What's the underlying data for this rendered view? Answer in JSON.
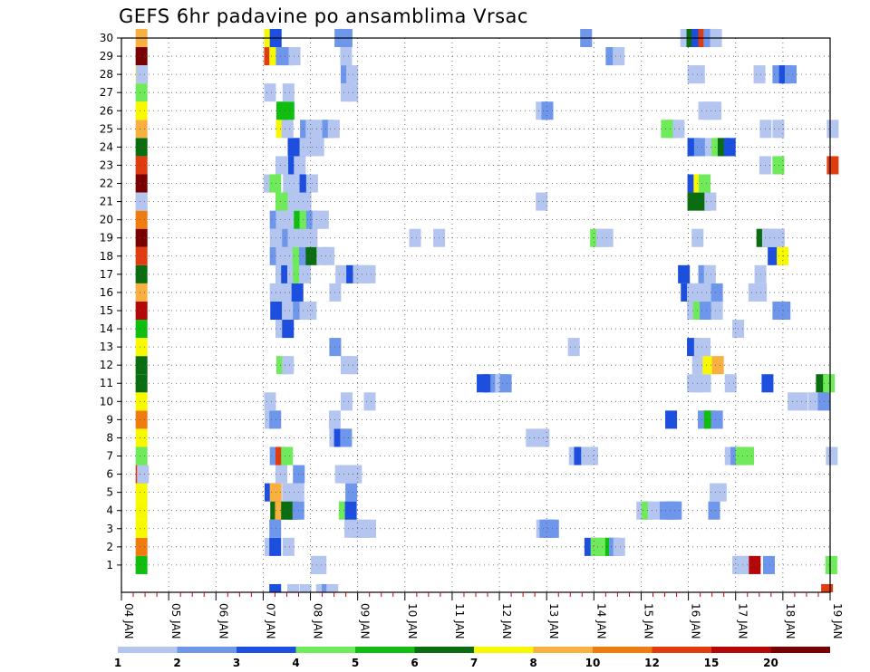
{
  "title": "GEFS 6hr padavine po ansamblima Vrsac",
  "chart_data": {
    "type": "heatmap",
    "title": "GEFS 6hr padavine po ansamblima Vrsac",
    "x_tick_labels": [
      "04 JAN",
      "05 JAN",
      "06 JAN",
      "07 JAN",
      "08 JAN",
      "09 JAN",
      "10 JAN",
      "11 JAN",
      "12 JAN",
      "13 JAN",
      "14 JAN",
      "15 JAN",
      "16 JAN",
      "17 JAN",
      "18 JAN",
      "19 JAN"
    ],
    "y_tick_labels": [
      "1",
      "2",
      "3",
      "4",
      "5",
      "6",
      "7",
      "8",
      "9",
      "10",
      "11",
      "12",
      "13",
      "14",
      "15",
      "16",
      "17",
      "18",
      "19",
      "20",
      "21",
      "22",
      "23",
      "24",
      "25",
      "26",
      "27",
      "28",
      "29",
      "30"
    ],
    "x_range_days": [
      0,
      15
    ],
    "y_range": [
      0,
      30
    ],
    "time_step_hours": 6,
    "grid": "dotted",
    "colorbar": {
      "labels": [
        "1",
        "2",
        "3",
        "4",
        "5",
        "6",
        "7",
        "8",
        "10",
        "12",
        "15",
        "20"
      ],
      "colors": [
        "#b4c6f0",
        "#6e96ea",
        "#1c4ee0",
        "#6eea5a",
        "#10be10",
        "#0a6e10",
        "#f8f800",
        "#f8b040",
        "#f07c10",
        "#e03c10",
        "#b40808",
        "#780000"
      ]
    },
    "summary_column_levels": [
      5,
      9,
      7,
      7,
      7,
      10,
      4,
      7,
      9,
      7,
      6,
      6,
      7,
      5,
      11,
      8,
      6,
      10,
      12,
      9,
      8,
      12,
      10,
      6,
      8,
      7,
      4,
      7,
      12,
      8
    ],
    "cells": [
      {
        "member": 1,
        "x": [
          [
            4.01,
            1
          ],
          [
            4.09,
            1
          ],
          [
            12.93,
            1
          ],
          [
            13.02,
            1
          ],
          [
            13.09,
            1
          ],
          [
            13.19,
            1
          ],
          [
            13.28,
            11
          ],
          [
            13.58,
            2
          ],
          [
            14.9,
            4
          ]
        ]
      },
      {
        "member": 2,
        "x": [
          [
            3.03,
            1
          ],
          [
            3.13,
            3
          ],
          [
            3.41,
            1
          ],
          [
            9.8,
            3
          ],
          [
            9.93,
            4
          ],
          [
            10.02,
            4
          ],
          [
            10.13,
            4
          ],
          [
            10.24,
            5
          ],
          [
            10.32,
            2
          ],
          [
            10.41,
            1
          ]
        ]
      },
      {
        "member": 3,
        "x": [
          [
            3.13,
            2
          ],
          [
            4.72,
            1
          ],
          [
            4.85,
            1
          ],
          [
            4.93,
            1
          ],
          [
            5.02,
            1
          ],
          [
            5.14,
            1
          ],
          [
            8.78,
            1
          ],
          [
            8.85,
            2
          ],
          [
            8.93,
            2
          ],
          [
            9.01,
            2
          ]
        ]
      },
      {
        "member": 4,
        "x": [
          [
            3.15,
            6
          ],
          [
            3.25,
            8
          ],
          [
            3.38,
            6
          ],
          [
            3.51,
            6
          ],
          [
            3.62,
            2
          ],
          [
            4.6,
            4
          ],
          [
            4.73,
            3
          ],
          [
            10.9,
            1
          ],
          [
            11.01,
            4
          ],
          [
            11.14,
            1
          ],
          [
            11.39,
            2
          ],
          [
            11.51,
            2
          ],
          [
            11.61,
            2
          ],
          [
            12.42,
            2
          ]
        ]
      },
      {
        "member": 5,
        "x": [
          [
            3.03,
            3
          ],
          [
            3.14,
            8
          ],
          [
            3.4,
            1
          ],
          [
            3.62,
            1
          ],
          [
            4.74,
            2
          ],
          [
            12.45,
            1
          ],
          [
            12.56,
            1
          ]
        ]
      },
      {
        "member": 6,
        "x": [
          [
            0.33,
            1
          ],
          [
            3.26,
            1
          ],
          [
            3.63,
            2
          ],
          [
            4.52,
            1
          ],
          [
            4.63,
            1
          ],
          [
            4.73,
            1
          ],
          [
            4.84,
            1
          ]
        ]
      },
      {
        "member": 7,
        "x": [
          [
            3.14,
            2
          ],
          [
            3.26,
            10
          ],
          [
            3.38,
            4
          ],
          [
            9.47,
            1
          ],
          [
            9.58,
            3
          ],
          [
            9.73,
            1
          ],
          [
            9.84,
            1
          ],
          [
            12.77,
            1
          ],
          [
            12.89,
            2
          ],
          [
            13.0,
            4
          ],
          [
            13.14,
            4
          ],
          [
            14.91,
            1
          ]
        ]
      },
      {
        "member": 8,
        "x": [
          [
            4.4,
            1
          ],
          [
            4.5,
            3
          ],
          [
            4.63,
            2
          ],
          [
            8.56,
            1
          ],
          [
            8.69,
            1
          ],
          [
            8.81,
            1
          ]
        ]
      },
      {
        "member": 9,
        "x": [
          [
            3.03,
            1
          ],
          [
            3.13,
            2
          ],
          [
            4.39,
            1
          ],
          [
            11.51,
            3
          ],
          [
            12.2,
            2
          ],
          [
            12.33,
            5
          ],
          [
            12.48,
            2
          ]
        ]
      },
      {
        "member": 10,
        "x": [
          [
            3.02,
            1
          ],
          [
            4.64,
            1
          ],
          [
            5.13,
            1
          ],
          [
            14.1,
            1
          ],
          [
            14.28,
            1
          ],
          [
            14.54,
            1
          ],
          [
            14.74,
            2
          ]
        ]
      },
      {
        "member": 11,
        "x": [
          [
            7.52,
            3
          ],
          [
            7.65,
            3
          ],
          [
            7.81,
            2
          ],
          [
            7.91,
            1
          ],
          [
            8.01,
            2
          ],
          [
            11.97,
            1
          ],
          [
            12.09,
            1
          ],
          [
            12.23,
            1
          ],
          [
            12.77,
            1
          ],
          [
            13.55,
            3
          ],
          [
            14.7,
            6
          ],
          [
            14.85,
            4
          ]
        ]
      },
      {
        "member": 12,
        "x": [
          [
            3.28,
            4
          ],
          [
            3.4,
            1
          ],
          [
            4.64,
            1
          ],
          [
            4.76,
            1
          ],
          [
            12.08,
            1
          ],
          [
            12.3,
            7
          ],
          [
            12.5,
            8
          ]
        ]
      },
      {
        "member": 13,
        "x": [
          [
            4.4,
            2
          ],
          [
            9.45,
            1
          ],
          [
            11.97,
            3
          ],
          [
            12.12,
            1
          ],
          [
            12.22,
            1
          ]
        ]
      },
      {
        "member": 14,
        "x": [
          [
            3.26,
            1
          ],
          [
            3.4,
            3
          ],
          [
            12.93,
            1
          ]
        ]
      },
      {
        "member": 15,
        "x": [
          [
            3.15,
            3
          ],
          [
            3.4,
            1
          ],
          [
            3.52,
            1
          ],
          [
            3.63,
            2
          ],
          [
            3.77,
            1
          ],
          [
            3.88,
            1
          ],
          [
            11.97,
            1
          ],
          [
            12.1,
            4
          ],
          [
            12.24,
            2
          ],
          [
            12.48,
            1
          ],
          [
            13.78,
            2
          ],
          [
            13.91,
            2
          ]
        ]
      },
      {
        "member": 16,
        "x": [
          [
            3.14,
            1
          ],
          [
            3.27,
            1
          ],
          [
            3.51,
            1
          ],
          [
            3.6,
            3
          ],
          [
            4.4,
            1
          ],
          [
            11.84,
            3
          ],
          [
            11.97,
            1
          ],
          [
            12.09,
            1
          ],
          [
            12.21,
            1
          ],
          [
            12.35,
            1
          ],
          [
            12.48,
            2
          ],
          [
            13.27,
            1
          ],
          [
            13.41,
            1
          ]
        ]
      },
      {
        "member": 17,
        "x": [
          [
            3.26,
            1
          ],
          [
            3.38,
            3
          ],
          [
            3.51,
            1
          ],
          [
            3.63,
            4
          ],
          [
            3.76,
            1
          ],
          [
            4.53,
            1
          ],
          [
            4.76,
            3
          ],
          [
            4.9,
            1
          ],
          [
            5.02,
            1
          ],
          [
            5.13,
            1
          ],
          [
            11.78,
            3
          ],
          [
            12.21,
            2
          ],
          [
            12.33,
            1
          ],
          [
            13.4,
            1
          ]
        ]
      },
      {
        "member": 18,
        "x": [
          [
            3.14,
            2
          ],
          [
            3.27,
            1
          ],
          [
            3.52,
            1
          ],
          [
            3.62,
            4
          ],
          [
            3.76,
            2
          ],
          [
            3.9,
            6
          ],
          [
            4.13,
            1
          ],
          [
            4.26,
            1
          ],
          [
            13.68,
            3
          ],
          [
            13.87,
            7
          ]
        ]
      },
      {
        "member": 19,
        "x": [
          [
            3.14,
            1
          ],
          [
            3.27,
            1
          ],
          [
            3.4,
            2
          ],
          [
            3.52,
            1
          ],
          [
            3.63,
            1
          ],
          [
            3.76,
            1
          ],
          [
            3.9,
            1
          ],
          [
            6.09,
            1
          ],
          [
            6.6,
            1
          ],
          [
            9.92,
            4
          ],
          [
            10.05,
            1
          ],
          [
            10.16,
            1
          ],
          [
            12.07,
            1
          ],
          [
            13.44,
            6
          ],
          [
            13.56,
            1
          ],
          [
            13.69,
            1
          ],
          [
            13.79,
            1
          ]
        ]
      },
      {
        "member": 20,
        "x": [
          [
            3.14,
            2
          ],
          [
            3.27,
            1
          ],
          [
            3.52,
            1
          ],
          [
            3.65,
            5
          ],
          [
            3.77,
            4
          ],
          [
            3.91,
            2
          ],
          [
            4.04,
            1
          ],
          [
            4.14,
            1
          ]
        ]
      },
      {
        "member": 21,
        "x": [
          [
            0.3,
            1
          ],
          [
            3.26,
            4
          ],
          [
            3.4,
            4
          ],
          [
            3.52,
            1
          ],
          [
            3.63,
            1
          ],
          [
            3.77,
            1
          ],
          [
            8.77,
            1
          ],
          [
            11.98,
            6
          ],
          [
            12.22,
            6
          ],
          [
            12.34,
            1
          ]
        ]
      },
      {
        "member": 22,
        "x": [
          [
            3.01,
            1
          ],
          [
            3.13,
            4
          ],
          [
            3.42,
            1
          ],
          [
            3.63,
            1
          ],
          [
            3.77,
            3
          ],
          [
            3.91,
            1
          ],
          [
            11.98,
            3
          ],
          [
            12.11,
            7
          ],
          [
            12.22,
            4
          ]
        ]
      },
      {
        "member": 23,
        "x": [
          [
            3.26,
            1
          ],
          [
            3.4,
            1
          ],
          [
            3.53,
            3
          ],
          [
            3.65,
            1
          ],
          [
            13.5,
            1
          ],
          [
            13.78,
            4
          ],
          [
            14.93,
            10
          ]
        ]
      },
      {
        "member": 24,
        "x": [
          [
            3.52,
            3
          ],
          [
            3.66,
            3
          ],
          [
            3.77,
            1
          ],
          [
            3.9,
            1
          ],
          [
            4.04,
            1
          ],
          [
            11.98,
            3
          ],
          [
            12.12,
            2
          ],
          [
            12.35,
            1
          ],
          [
            12.49,
            4
          ],
          [
            12.62,
            6
          ],
          [
            12.75,
            3
          ]
        ]
      },
      {
        "member": 25,
        "x": [
          [
            3.27,
            7
          ],
          [
            3.39,
            1
          ],
          [
            3.78,
            2
          ],
          [
            3.9,
            1
          ],
          [
            4.01,
            1
          ],
          [
            4.15,
            1
          ],
          [
            4.25,
            2
          ],
          [
            4.37,
            1
          ],
          [
            11.42,
            4
          ],
          [
            11.52,
            4
          ],
          [
            11.67,
            1
          ],
          [
            13.51,
            1
          ],
          [
            13.78,
            1
          ],
          [
            14.93,
            1
          ]
        ]
      },
      {
        "member": 26,
        "x": [
          [
            3.28,
            5
          ],
          [
            3.41,
            5
          ],
          [
            8.77,
            1
          ],
          [
            8.89,
            2
          ],
          [
            12.21,
            1
          ],
          [
            12.33,
            1
          ],
          [
            12.45,
            1
          ]
        ]
      },
      {
        "member": 27,
        "x": [
          [
            3.02,
            1
          ],
          [
            3.41,
            1
          ],
          [
            4.64,
            1
          ],
          [
            4.76,
            1
          ]
        ]
      },
      {
        "member": 28,
        "x": [
          [
            0.31,
            1
          ],
          [
            4.64,
            2
          ],
          [
            4.76,
            1
          ],
          [
            11.98,
            1
          ],
          [
            12.1,
            1
          ],
          [
            13.38,
            1
          ],
          [
            13.78,
            2
          ],
          [
            13.92,
            3
          ],
          [
            14.04,
            2
          ]
        ]
      },
      {
        "member": 29,
        "x": [
          [
            3.02,
            10
          ],
          [
            3.13,
            7
          ],
          [
            3.27,
            2
          ],
          [
            3.39,
            2
          ],
          [
            3.54,
            1
          ],
          [
            4.63,
            1
          ],
          [
            10.25,
            2
          ],
          [
            10.4,
            1
          ]
        ]
      },
      {
        "member": 30,
        "x": [
          [
            3.02,
            7
          ],
          [
            3.14,
            3
          ],
          [
            4.51,
            2
          ],
          [
            4.64,
            2
          ],
          [
            9.71,
            2
          ],
          [
            11.83,
            1
          ],
          [
            11.96,
            6
          ],
          [
            12.07,
            3
          ],
          [
            12.21,
            10
          ],
          [
            12.32,
            2
          ],
          [
            12.46,
            1
          ]
        ]
      }
    ],
    "bottom_row": [
      [
        3.13,
        3
      ],
      [
        3.51,
        1
      ],
      [
        3.77,
        1
      ],
      [
        4.12,
        1
      ],
      [
        4.24,
        2
      ],
      [
        4.34,
        1
      ],
      [
        14.81,
        10
      ]
    ]
  }
}
